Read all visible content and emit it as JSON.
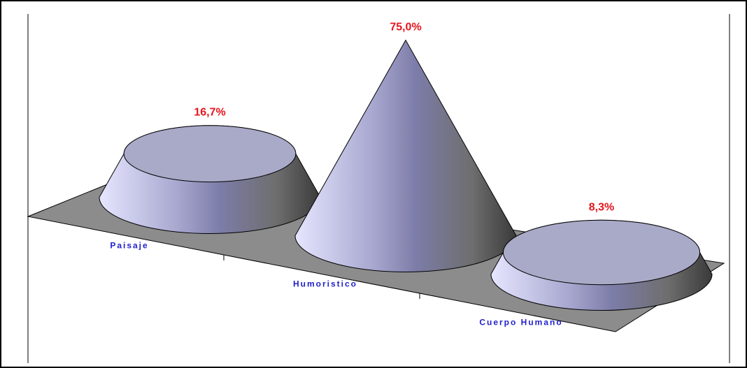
{
  "chart_data": {
    "type": "cone",
    "categories": [
      "Paisaje",
      "Humoristico",
      "Cuerpo Humano"
    ],
    "values": [
      16.7,
      75.0,
      8.3
    ],
    "value_labels": [
      "16,7%",
      "75,0%",
      "8,3%"
    ],
    "color": "#b8b8e0"
  }
}
